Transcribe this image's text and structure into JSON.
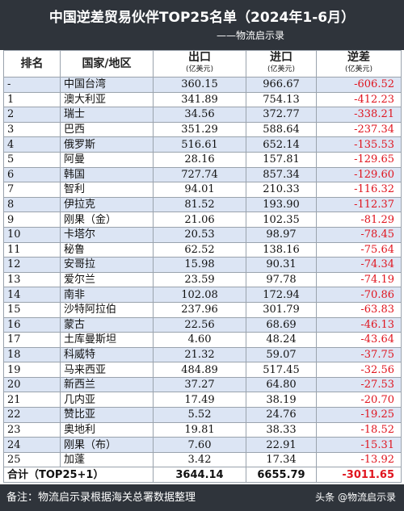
{
  "header": {
    "title": "中国逆差贸易伙伴TOP25名单（2024年1-6月）",
    "subtitle": "——物流启示录"
  },
  "table": {
    "columns": [
      "排名",
      "国家/地区",
      "出口",
      "进口",
      "逆差"
    ],
    "units": [
      "(亿美元)",
      "(亿美元)",
      "(亿美元)"
    ],
    "rows": [
      [
        "-",
        "中国台湾",
        "360.15",
        "966.67",
        "-606.52"
      ],
      [
        "1",
        "澳大利亚",
        "341.89",
        "754.13",
        "-412.23"
      ],
      [
        "2",
        "瑞士",
        "34.56",
        "372.77",
        "-338.21"
      ],
      [
        "3",
        "巴西",
        "351.29",
        "588.64",
        "-237.34"
      ],
      [
        "4",
        "俄罗斯",
        "516.61",
        "652.14",
        "-135.53"
      ],
      [
        "5",
        "阿曼",
        "28.16",
        "157.81",
        "-129.65"
      ],
      [
        "6",
        "韩国",
        "727.74",
        "857.34",
        "-129.60"
      ],
      [
        "7",
        "智利",
        "94.01",
        "210.33",
        "-116.32"
      ],
      [
        "8",
        "伊拉克",
        "81.52",
        "193.90",
        "-112.37"
      ],
      [
        "9",
        "刚果（金）",
        "21.06",
        "102.35",
        "-81.29"
      ],
      [
        "10",
        "卡塔尔",
        "20.53",
        "98.97",
        "-78.45"
      ],
      [
        "11",
        "秘鲁",
        "62.52",
        "138.16",
        "-75.64"
      ],
      [
        "12",
        "安哥拉",
        "15.98",
        "90.31",
        "-74.34"
      ],
      [
        "13",
        "爱尔兰",
        "23.59",
        "97.78",
        "-74.19"
      ],
      [
        "14",
        "南非",
        "102.08",
        "172.94",
        "-70.86"
      ],
      [
        "15",
        "沙特阿拉伯",
        "237.96",
        "301.79",
        "-63.83"
      ],
      [
        "16",
        "蒙古",
        "22.56",
        "68.69",
        "-46.13"
      ],
      [
        "17",
        "土库曼斯坦",
        "4.60",
        "48.24",
        "-43.64"
      ],
      [
        "18",
        "科威特",
        "21.32",
        "59.07",
        "-37.75"
      ],
      [
        "19",
        "马来西亚",
        "484.89",
        "517.45",
        "-32.56"
      ],
      [
        "20",
        "新西兰",
        "37.27",
        "64.80",
        "-27.53"
      ],
      [
        "21",
        "几内亚",
        "17.49",
        "38.19",
        "-20.70"
      ],
      [
        "22",
        "赞比亚",
        "5.52",
        "24.76",
        "-19.25"
      ],
      [
        "23",
        "奥地利",
        "19.81",
        "38.33",
        "-18.52"
      ],
      [
        "24",
        "刚果（布）",
        "7.60",
        "22.91",
        "-15.31"
      ],
      [
        "25",
        "加蓬",
        "3.42",
        "17.34",
        "-13.92"
      ]
    ],
    "total": [
      "合计（TOP25+1）",
      "3644.14",
      "6655.79",
      "-3011.65"
    ]
  },
  "footer": {
    "note": "备注：物流启示录根据海关总署数据整理",
    "brand": "头条 @物流启示录"
  }
}
